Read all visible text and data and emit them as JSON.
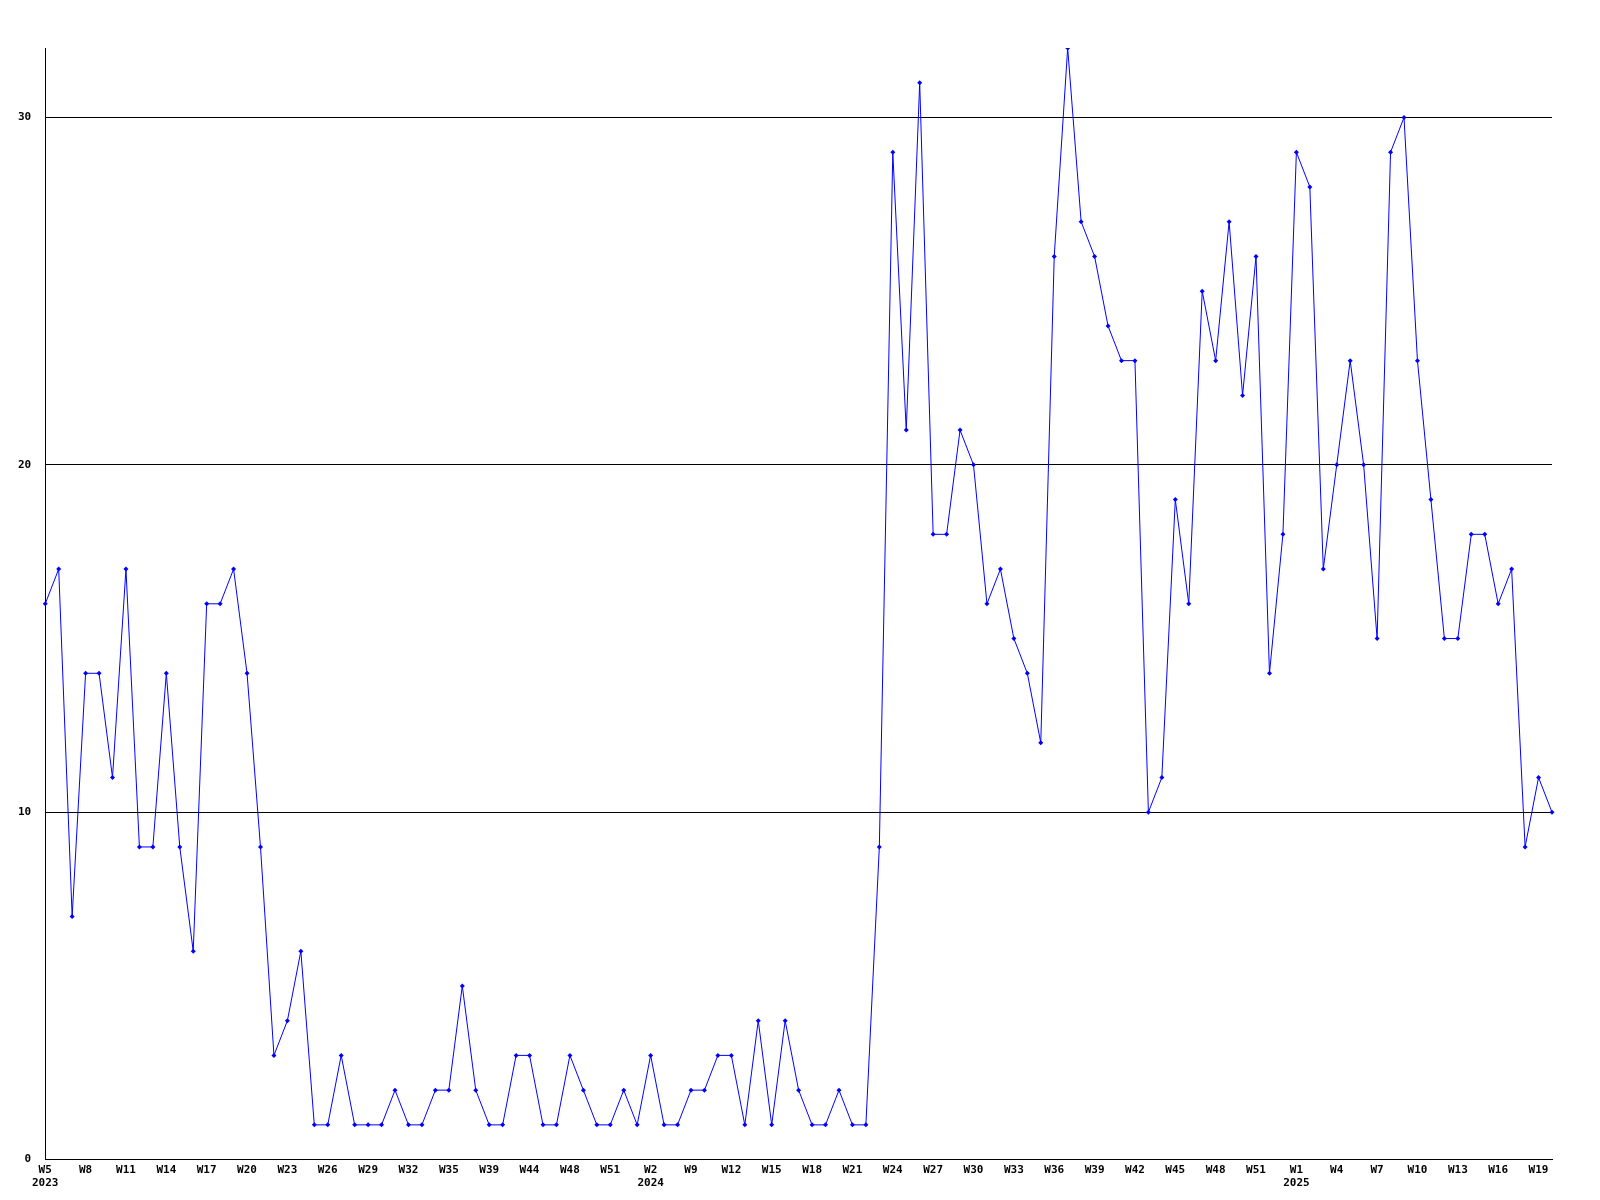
{
  "chart_data": {
    "type": "line",
    "categories": [
      "W5\n2023",
      null,
      null,
      "W8",
      null,
      null,
      "W11",
      null,
      null,
      "W14",
      null,
      null,
      "W17",
      null,
      null,
      "W20",
      null,
      null,
      "W23",
      null,
      null,
      "W26",
      null,
      null,
      "W29",
      null,
      null,
      "W32",
      null,
      null,
      "W35",
      null,
      null,
      "W39",
      null,
      null,
      "W44",
      null,
      null,
      "W48",
      null,
      null,
      "W51",
      null,
      null,
      "W2\n2024",
      null,
      null,
      "W9",
      null,
      null,
      "W12",
      null,
      null,
      "W15",
      null,
      null,
      "W18",
      null,
      null,
      "W21",
      null,
      null,
      "W24",
      null,
      null,
      "W27",
      null,
      null,
      "W30",
      null,
      null,
      "W33",
      null,
      null,
      "W36",
      null,
      null,
      "W39",
      null,
      null,
      "W42",
      null,
      null,
      "W45",
      null,
      null,
      "W48",
      null,
      null,
      "W51",
      null,
      null,
      "W1\n2025",
      null,
      null,
      "W4",
      null,
      null,
      "W7",
      null,
      null,
      "W10",
      null,
      null,
      "W13",
      null,
      null,
      "W16",
      null,
      null,
      "W19",
      null
    ],
    "series": [
      {
        "color": "#0000ff",
        "values": [
          16,
          17,
          7,
          14,
          14,
          11,
          17,
          9,
          9,
          14,
          9,
          6,
          16,
          16,
          17,
          14,
          9,
          3,
          4,
          6,
          1,
          1,
          3,
          1,
          1,
          1,
          2,
          1,
          1,
          2,
          2,
          5,
          2,
          1,
          1,
          3,
          3,
          1,
          1,
          3,
          2,
          1,
          1,
          2,
          1,
          3,
          1,
          1,
          2,
          2,
          3,
          3,
          1,
          4,
          1,
          4,
          2,
          1,
          1,
          2,
          1,
          1,
          9,
          29,
          21,
          31,
          18,
          18,
          21,
          20,
          16,
          17,
          15,
          14,
          12,
          26,
          32,
          27,
          26,
          24,
          23,
          23,
          10,
          11,
          19,
          16,
          25,
          23,
          27,
          22,
          26,
          14,
          18,
          29,
          28,
          17,
          20,
          23,
          20,
          15,
          29,
          30,
          23,
          19,
          15,
          15,
          18,
          18,
          16,
          17,
          9,
          11,
          10
        ]
      }
    ],
    "ylim": [
      0,
      32
    ],
    "yticks": [
      0,
      10,
      20,
      30
    ],
    "grid": "y",
    "marker": "diamond",
    "line_style": "solid",
    "legend": false
  }
}
